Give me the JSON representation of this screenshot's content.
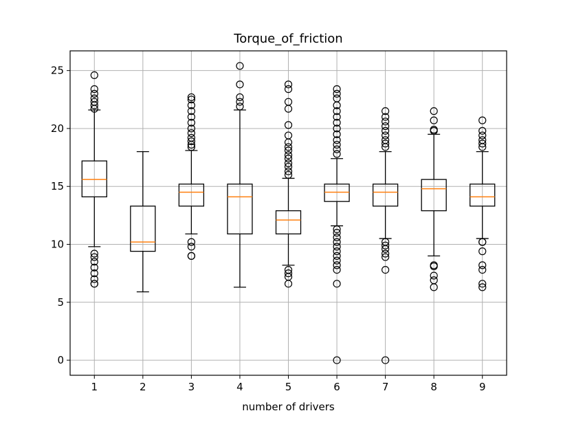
{
  "chart_data": {
    "type": "boxplot",
    "title": "Torque_of_friction",
    "xlabel": "number of drivers",
    "ylabel": "",
    "categories": [
      "1",
      "2",
      "3",
      "4",
      "5",
      "6",
      "7",
      "8",
      "9"
    ],
    "ylim": [
      -1.3,
      26.7
    ],
    "yticks": [
      0,
      5,
      10,
      15,
      20,
      25
    ],
    "grid": true,
    "median_color": "#ff7f0e",
    "boxes": [
      {
        "q1": 14.1,
        "median": 15.6,
        "q3": 17.2,
        "whisker_low": 9.8,
        "whisker_high": 21.6,
        "fliers": [
          24.6,
          23.4,
          23.0,
          22.6,
          22.3,
          22.0,
          21.7,
          9.2,
          8.9,
          8.5,
          8.0,
          7.5,
          7.0,
          6.6,
          6.6
        ]
      },
      {
        "q1": 9.4,
        "median": 10.2,
        "q3": 13.3,
        "whisker_low": 5.9,
        "whisker_high": 18.0,
        "fliers": []
      },
      {
        "q1": 13.3,
        "median": 14.5,
        "q3": 15.2,
        "whisker_low": 10.9,
        "whisker_high": 18.1,
        "fliers": [
          22.7,
          22.5,
          22.0,
          21.5,
          21.0,
          20.5,
          20.0,
          19.6,
          19.2,
          18.9,
          18.6,
          18.4,
          10.2,
          9.8,
          9.0,
          9.0
        ]
      },
      {
        "q1": 10.9,
        "median": 14.1,
        "q3": 15.2,
        "whisker_low": 6.3,
        "whisker_high": 21.6,
        "fliers": [
          25.4,
          23.8,
          22.7,
          22.3,
          21.9
        ]
      },
      {
        "q1": 10.9,
        "median": 12.1,
        "q3": 12.9,
        "whisker_low": 8.2,
        "whisker_high": 15.7,
        "fliers": [
          23.8,
          23.4,
          22.3,
          21.7,
          20.3,
          19.4,
          18.8,
          18.4,
          18.1,
          17.7,
          17.4,
          17.0,
          16.7,
          16.3,
          16.0,
          7.8,
          7.5,
          7.2,
          6.6
        ]
      },
      {
        "q1": 13.7,
        "median": 14.5,
        "q3": 15.2,
        "whisker_low": 11.6,
        "whisker_high": 17.4,
        "fliers": [
          23.4,
          23.0,
          22.6,
          22.0,
          21.5,
          21.0,
          20.5,
          20.0,
          19.5,
          19.0,
          18.6,
          18.2,
          17.8,
          11.3,
          11.0,
          10.6,
          10.2,
          9.8,
          9.4,
          9.0,
          8.6,
          8.2,
          7.8,
          6.6,
          0.0
        ]
      },
      {
        "q1": 13.3,
        "median": 14.5,
        "q3": 15.2,
        "whisker_low": 10.5,
        "whisker_high": 18.0,
        "fliers": [
          21.5,
          21.0,
          20.6,
          20.2,
          19.8,
          19.4,
          19.0,
          18.7,
          18.4,
          10.2,
          9.9,
          9.6,
          9.2,
          8.9,
          7.8,
          0.0
        ]
      },
      {
        "q1": 12.9,
        "median": 14.8,
        "q3": 15.6,
        "whisker_low": 9.0,
        "whisker_high": 19.5,
        "fliers": [
          21.5,
          20.7,
          19.9,
          19.8,
          8.2,
          8.1,
          7.3,
          6.9,
          6.3
        ]
      },
      {
        "q1": 13.3,
        "median": 14.1,
        "q3": 15.2,
        "whisker_low": 10.5,
        "whisker_high": 18.0,
        "fliers": [
          20.7,
          19.8,
          19.4,
          19.0,
          18.7,
          18.4,
          10.2,
          10.2,
          9.4,
          8.2,
          7.8,
          6.6,
          6.3
        ]
      }
    ]
  }
}
